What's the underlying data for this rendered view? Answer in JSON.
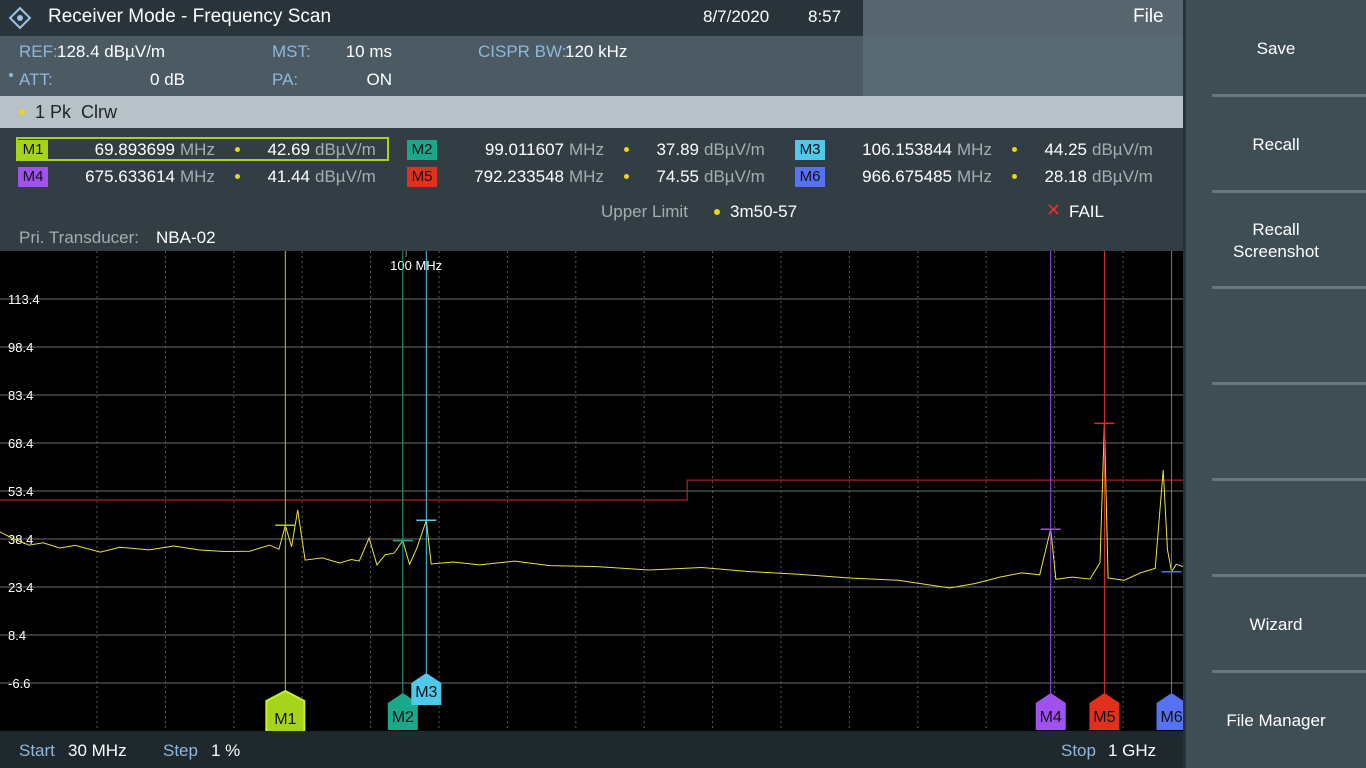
{
  "header": {
    "title": "Receiver Mode - Frequency Scan",
    "date": "8/7/2020",
    "time": "8:57",
    "menu": "File"
  },
  "settings": {
    "ref": {
      "label": "REF:",
      "value": "128.4 dBµV/m"
    },
    "att": {
      "label": "ATT:",
      "value": "0 dB"
    },
    "mst": {
      "label": "MST:",
      "value": "10 ms"
    },
    "pa": {
      "label": "PA:",
      "value": "ON"
    },
    "bw": {
      "label": "CISPR BW:",
      "value": "120 kHz"
    }
  },
  "trace_label": "1 Pk  Clrw",
  "units": {
    "freq": "MHz",
    "level": "dBµV/m"
  },
  "markers": [
    {
      "name": "M1",
      "freq": 69.893699,
      "level": 42.69,
      "color": "#a6d41c"
    },
    {
      "name": "M2",
      "freq": 99.011607,
      "level": 37.89,
      "color": "#1aa88a"
    },
    {
      "name": "M3",
      "freq": 106.153844,
      "level": 44.25,
      "color": "#4fc9ea"
    },
    {
      "name": "M4",
      "freq": 675.633614,
      "level": 41.44,
      "color": "#a052f0"
    },
    {
      "name": "M5",
      "freq": 792.233548,
      "level": 74.55,
      "color": "#e2301f"
    },
    {
      "name": "M6",
      "freq": 966.675485,
      "level": 28.18,
      "color": "#5672f2"
    }
  ],
  "limit": {
    "label": "Upper Limit",
    "name": "3m50-57",
    "result": "FAIL",
    "color": "#b02020",
    "x": [
      30,
      230,
      230,
      1000
    ],
    "y": [
      50.6,
      50.6,
      56.8,
      56.8
    ]
  },
  "transducer": {
    "label": "Pri. Transducer:",
    "value": "NBA-02"
  },
  "plot": {
    "xlim": [
      30,
      1000
    ],
    "xscale": "log",
    "ylim": [
      -21.6,
      128.4
    ],
    "yticks": [
      113.4,
      98.4,
      83.4,
      68.4,
      53.4,
      38.4,
      23.4,
      8.4,
      -6.6
    ],
    "xticks": [
      {
        "value": 100,
        "label": "100 MHz"
      }
    ],
    "trace": {
      "color": "#e8e23a",
      "x": [
        30,
        31.2,
        32.7,
        34.1,
        35.8,
        37.5,
        40.4,
        42.8,
        46.7,
        50.2,
        54.1,
        58.3,
        62.9,
        66.7,
        68.6,
        69.893699,
        71.2,
        72.5,
        74.1,
        78,
        82.1,
        85,
        87,
        89.6,
        91.7,
        94,
        96.5,
        99.011607,
        101,
        103.2,
        106.153844,
        107.7,
        115,
        124.3,
        138,
        153.1,
        175,
        205.7,
        240,
        277,
        320,
        372,
        430,
        501,
        540,
        581,
        620,
        654,
        675.633614,
        686,
        720,
        759,
        782,
        792.233548,
        801,
        840,
        881,
        921,
        943,
        955,
        966.675485,
        980,
        1000
      ],
      "y": [
        40.6,
        38.5,
        36.5,
        37.2,
        35.6,
        36.4,
        34.3,
        35.8,
        35,
        36.2,
        35,
        34.5,
        34.6,
        36.5,
        35.2,
        42.69,
        36,
        47.5,
        31.8,
        32.5,
        30.9,
        32,
        31.5,
        38.7,
        30.3,
        33.5,
        34,
        37.89,
        30.5,
        35.5,
        44.25,
        30.6,
        31.2,
        30.3,
        31.5,
        30.1,
        29.8,
        28.7,
        29.5,
        28.2,
        27.4,
        26.2,
        25.5,
        23.1,
        24.5,
        26.5,
        27.8,
        27.2,
        41.44,
        25.8,
        26.5,
        25.9,
        31,
        74.55,
        26.2,
        25.5,
        27.8,
        29.2,
        60,
        35,
        28.18,
        30.5,
        29.8
      ]
    }
  },
  "footer": {
    "start_label": "Start",
    "start": "30 MHz",
    "step_label": "Step",
    "step": "1 %",
    "stop_label": "Stop",
    "stop": "1 GHz"
  },
  "softkeys": [
    "Save",
    "Recall",
    "Recall Screenshot",
    "Wizard",
    "File Manager"
  ]
}
